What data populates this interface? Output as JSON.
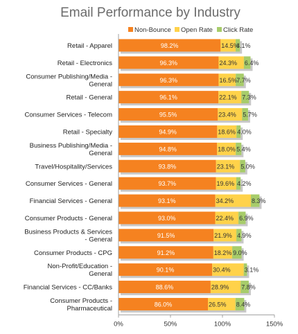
{
  "colors": {
    "non_bounce": "#f58220",
    "open_rate": "#ffd24a",
    "click_rate": "#a7cc6a",
    "shadow": "#c8c8c8",
    "axis": "#a0a0a0",
    "title": "#6b6b6b"
  },
  "chart_data": {
    "type": "bar",
    "orientation": "horizontal",
    "stacked": true,
    "title": "Email Performance by Industry",
    "legend_position": "top-right",
    "grid": false,
    "xlim": [
      0,
      150
    ],
    "x_ticks": [
      "0%",
      "50%",
      "100%",
      "150%"
    ],
    "categories": [
      [
        "Retail - Apparel"
      ],
      [
        "Retail - Electronics"
      ],
      [
        "Consumer Publishing/Media -",
        "General"
      ],
      [
        "Retail - General"
      ],
      [
        "Consumer Services - Telecom"
      ],
      [
        "Retail - Specialty"
      ],
      [
        "Business Publishing/Media -",
        "General"
      ],
      [
        "Travel/Hospitality/Services"
      ],
      [
        "Consumer Services - General"
      ],
      [
        "Financial Services - General"
      ],
      [
        "Consumer Products - General"
      ],
      [
        "Business Products & Services",
        "- General"
      ],
      [
        "Consumer Products - CPG"
      ],
      [
        "Non-Profit/Education -",
        "General"
      ],
      [
        "Financial Services - CC/Banks"
      ],
      [
        "Consumer Products -",
        "Pharmaceutical"
      ]
    ],
    "series": [
      {
        "name": "Non-Bounce",
        "values": [
          98.2,
          96.3,
          96.3,
          96.1,
          95.5,
          94.9,
          94.8,
          93.8,
          93.7,
          93.1,
          93.0,
          91.5,
          91.2,
          90.1,
          88.6,
          86.0
        ],
        "labels": [
          "98.2%",
          "96.3%",
          "96.3%",
          "96.1%",
          "95.5%",
          "94.9%",
          "94.8%",
          "93.8%",
          "93.7%",
          "93.1%",
          "93.0%",
          "91.5%",
          "91.2%",
          "90.1%",
          "88.6%",
          "86.0%"
        ]
      },
      {
        "name": "Open Rate",
        "values": [
          14.5,
          24.3,
          16.5,
          22.1,
          23.4,
          18.6,
          18.0,
          23.1,
          19.6,
          34.2,
          22.4,
          21.9,
          18.2,
          30.4,
          28.9,
          26.5
        ],
        "labels": [
          "14.5%",
          "24.3%",
          "16.5%",
          "22.1%",
          "23.4%",
          "18.6%",
          "18.0%",
          "23.1%",
          "19.6%",
          "34.2%",
          "22.4%",
          "21.9%",
          "18.2%",
          "30.4%",
          "28.9%",
          "26.5%"
        ]
      },
      {
        "name": "Click Rate",
        "values": [
          4.1,
          6.4,
          7.7,
          7.3,
          5.7,
          4.0,
          5.4,
          5.0,
          4.2,
          8.3,
          6.9,
          4.9,
          9.0,
          3.1,
          7.8,
          8.4
        ],
        "labels": [
          "4.1%",
          "6.4%",
          "7.7%",
          "7.3%",
          "5.7%",
          "4.0%",
          "5.4%",
          "5.0%",
          "4.2%",
          "8.3%",
          "6.9%",
          "4.9%",
          "9.0%",
          "3.1%",
          "7.8%",
          "8.4%"
        ]
      }
    ]
  }
}
